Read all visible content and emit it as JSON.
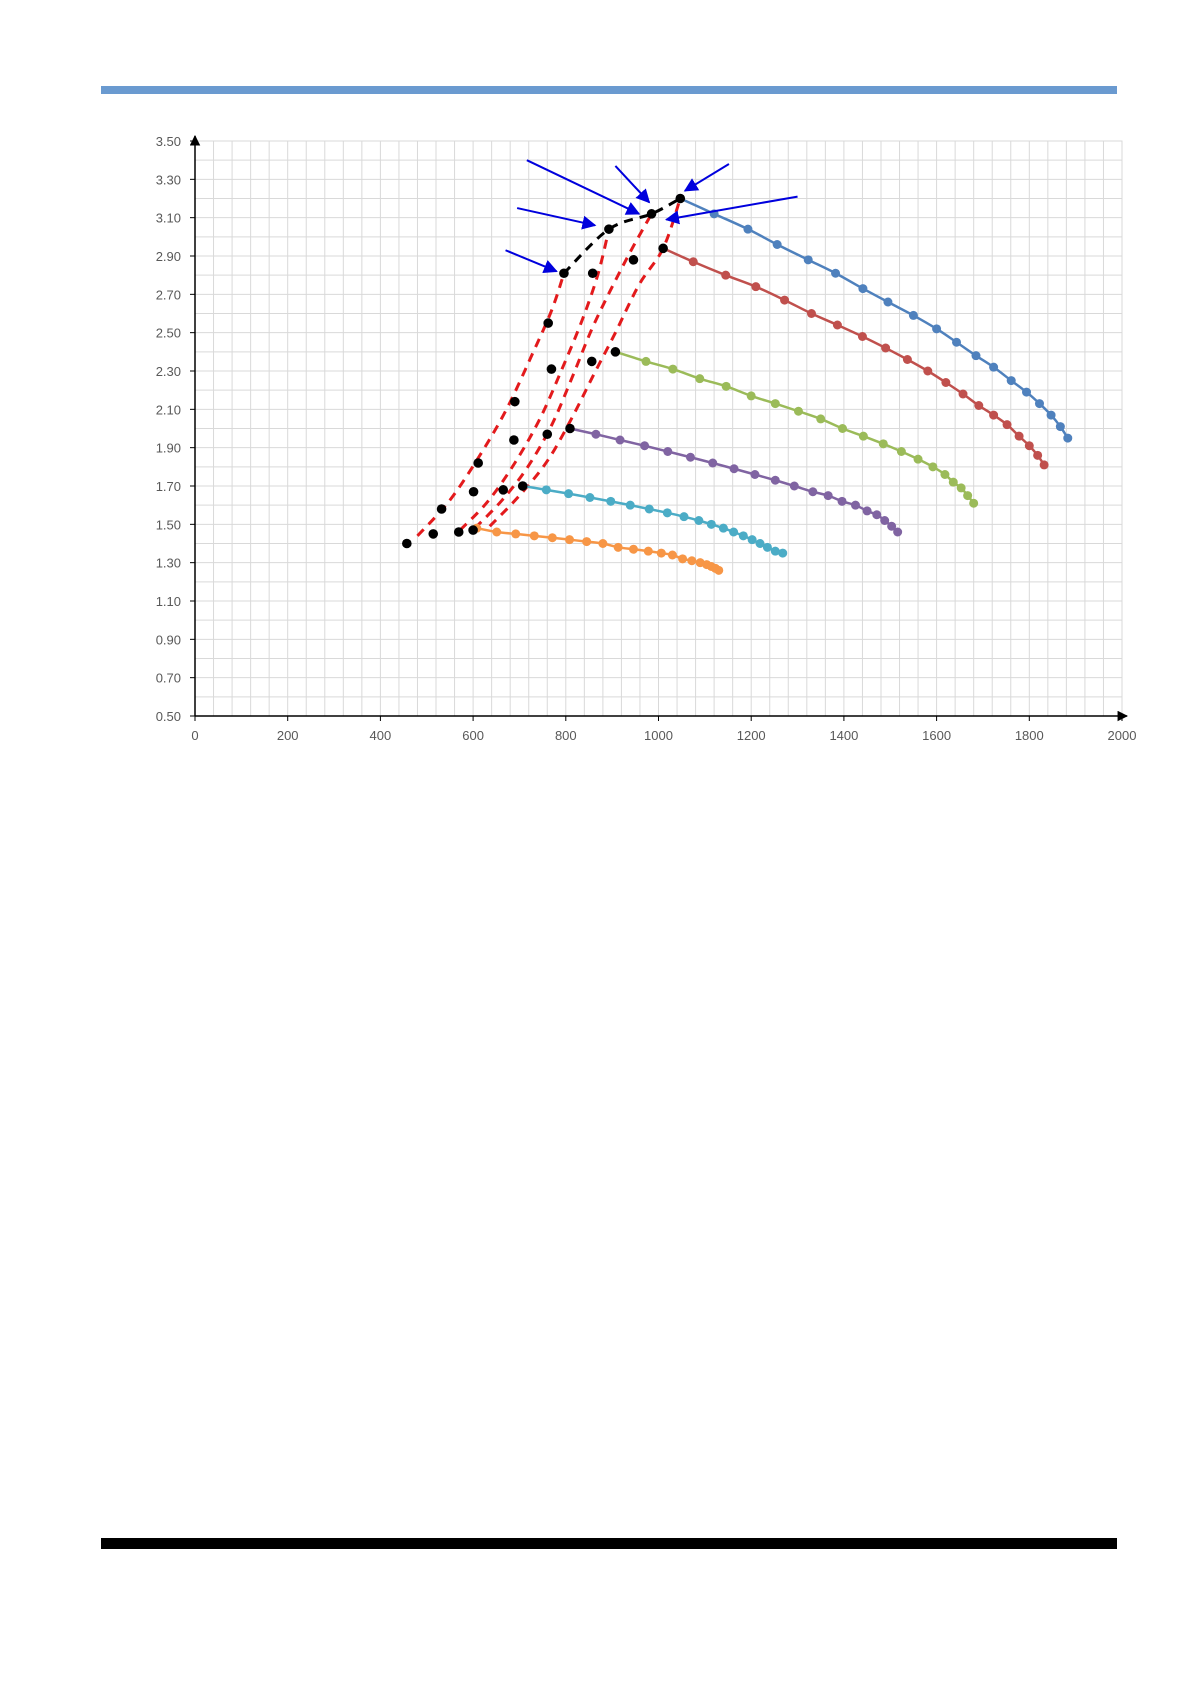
{
  "page": {
    "top_rule_color": "#6a9ad0",
    "bottom_rule_color": "#000000"
  },
  "chart_data": {
    "type": "scatter",
    "title": "",
    "xlabel": "",
    "ylabel": "",
    "xlim": [
      0,
      2000
    ],
    "ylim": [
      0.5,
      3.5
    ],
    "x_ticks": [
      "0",
      "200",
      "400",
      "600",
      "800",
      "1000",
      "1200",
      "1400",
      "1600",
      "1800",
      "2000"
    ],
    "y_ticks": [
      "0.50",
      "0.70",
      "0.90",
      "1.10",
      "1.30",
      "1.50",
      "1.70",
      "1.90",
      "2.10",
      "2.30",
      "2.50",
      "2.70",
      "2.90",
      "3.10",
      "3.30",
      "3.50"
    ],
    "grid": true,
    "legend": "none",
    "series": [
      {
        "color": "#4f81bd",
        "style": "line-markers",
        "points": [
          [
            1047,
            3.2
          ],
          [
            1120,
            3.12
          ],
          [
            1193,
            3.04
          ],
          [
            1256,
            2.96
          ],
          [
            1323,
            2.88
          ],
          [
            1382,
            2.81
          ],
          [
            1441,
            2.73
          ],
          [
            1495,
            2.66
          ],
          [
            1550,
            2.59
          ],
          [
            1600,
            2.52
          ],
          [
            1643,
            2.45
          ],
          [
            1685,
            2.38
          ],
          [
            1723,
            2.32
          ],
          [
            1761,
            2.25
          ],
          [
            1794,
            2.19
          ],
          [
            1822,
            2.13
          ],
          [
            1847,
            2.07
          ],
          [
            1867,
            2.01
          ],
          [
            1883,
            1.95
          ]
        ]
      },
      {
        "color": "#c0504d",
        "style": "line-markers",
        "points": [
          [
            1010,
            2.94
          ],
          [
            1075,
            2.87
          ],
          [
            1145,
            2.8
          ],
          [
            1210,
            2.74
          ],
          [
            1272,
            2.67
          ],
          [
            1330,
            2.6
          ],
          [
            1386,
            2.54
          ],
          [
            1440,
            2.48
          ],
          [
            1490,
            2.42
          ],
          [
            1537,
            2.36
          ],
          [
            1581,
            2.3
          ],
          [
            1620,
            2.24
          ],
          [
            1657,
            2.18
          ],
          [
            1691,
            2.12
          ],
          [
            1723,
            2.07
          ],
          [
            1752,
            2.02
          ],
          [
            1778,
            1.96
          ],
          [
            1800,
            1.91
          ],
          [
            1818,
            1.86
          ],
          [
            1832,
            1.81
          ]
        ]
      },
      {
        "color": "#9bbb59",
        "style": "line-markers",
        "points": [
          [
            907,
            2.4
          ],
          [
            973,
            2.35
          ],
          [
            1031,
            2.31
          ],
          [
            1089,
            2.26
          ],
          [
            1146,
            2.22
          ],
          [
            1200,
            2.17
          ],
          [
            1252,
            2.13
          ],
          [
            1302,
            2.09
          ],
          [
            1350,
            2.05
          ],
          [
            1397,
            2.0
          ],
          [
            1442,
            1.96
          ],
          [
            1485,
            1.92
          ],
          [
            1524,
            1.88
          ],
          [
            1560,
            1.84
          ],
          [
            1592,
            1.8
          ],
          [
            1618,
            1.76
          ],
          [
            1636,
            1.72
          ],
          [
            1653,
            1.69
          ],
          [
            1667,
            1.65
          ],
          [
            1680,
            1.61
          ]
        ]
      },
      {
        "color": "#8064a2",
        "style": "line-markers",
        "points": [
          [
            809,
            2.0
          ],
          [
            865,
            1.97
          ],
          [
            917,
            1.94
          ],
          [
            970,
            1.91
          ],
          [
            1020,
            1.88
          ],
          [
            1069,
            1.85
          ],
          [
            1117,
            1.82
          ],
          [
            1163,
            1.79
          ],
          [
            1208,
            1.76
          ],
          [
            1252,
            1.73
          ],
          [
            1293,
            1.7
          ],
          [
            1333,
            1.67
          ],
          [
            1366,
            1.65
          ],
          [
            1396,
            1.62
          ],
          [
            1425,
            1.6
          ],
          [
            1450,
            1.57
          ],
          [
            1471,
            1.55
          ],
          [
            1488,
            1.52
          ],
          [
            1503,
            1.49
          ],
          [
            1516,
            1.46
          ]
        ]
      },
      {
        "color": "#4bacc6",
        "style": "line-markers",
        "points": [
          [
            708,
            1.7
          ],
          [
            758,
            1.68
          ],
          [
            806,
            1.66
          ],
          [
            852,
            1.64
          ],
          [
            897,
            1.62
          ],
          [
            939,
            1.6
          ],
          [
            980,
            1.58
          ],
          [
            1019,
            1.56
          ],
          [
            1055,
            1.54
          ],
          [
            1087,
            1.52
          ],
          [
            1114,
            1.5
          ],
          [
            1140,
            1.48
          ],
          [
            1162,
            1.46
          ],
          [
            1183,
            1.44
          ],
          [
            1202,
            1.42
          ],
          [
            1219,
            1.4
          ],
          [
            1235,
            1.38
          ],
          [
            1252,
            1.36
          ],
          [
            1268,
            1.35
          ]
        ]
      },
      {
        "color": "#f79646",
        "style": "line-markers",
        "points": [
          [
            608,
            1.48
          ],
          [
            651,
            1.46
          ],
          [
            692,
            1.45
          ],
          [
            732,
            1.44
          ],
          [
            771,
            1.43
          ],
          [
            808,
            1.42
          ],
          [
            845,
            1.41
          ],
          [
            880,
            1.4
          ],
          [
            913,
            1.38
          ],
          [
            946,
            1.37
          ],
          [
            978,
            1.36
          ],
          [
            1006,
            1.35
          ],
          [
            1030,
            1.34
          ],
          [
            1052,
            1.32
          ],
          [
            1072,
            1.31
          ],
          [
            1090,
            1.3
          ],
          [
            1104,
            1.29
          ],
          [
            1114,
            1.28
          ],
          [
            1123,
            1.27
          ],
          [
            1130,
            1.26
          ]
        ]
      },
      {
        "color": "#000000",
        "style": "markers",
        "points": [
          [
            457,
            1.4
          ],
          [
            514,
            1.45
          ],
          [
            532,
            1.58
          ],
          [
            569,
            1.46
          ],
          [
            600,
            1.47
          ],
          [
            601,
            1.67
          ],
          [
            611,
            1.82
          ],
          [
            665,
            1.68
          ],
          [
            688,
            1.94
          ],
          [
            690,
            2.14
          ],
          [
            707,
            1.7
          ],
          [
            760,
            1.97
          ],
          [
            762,
            2.55
          ],
          [
            769,
            2.31
          ],
          [
            796,
            2.81
          ],
          [
            809,
            2.0
          ],
          [
            856,
            2.35
          ],
          [
            858,
            2.81
          ],
          [
            893,
            3.04
          ],
          [
            907,
            2.4
          ],
          [
            946,
            2.88
          ],
          [
            985,
            3.12
          ],
          [
            1010,
            2.94
          ],
          [
            1047,
            3.2
          ]
        ]
      },
      {
        "color": "#e31a1c",
        "style": "dashed",
        "points": [
          [
            480,
            1.44
          ],
          [
            548,
            1.62
          ],
          [
            612,
            1.85
          ],
          [
            672,
            2.1
          ],
          [
            730,
            2.4
          ],
          [
            770,
            2.62
          ],
          [
            796,
            2.81
          ]
        ]
      },
      {
        "color": "#e31a1c",
        "style": "dashed",
        "points": [
          [
            572,
            1.47
          ],
          [
            632,
            1.62
          ],
          [
            690,
            1.82
          ],
          [
            744,
            2.05
          ],
          [
            790,
            2.3
          ],
          [
            836,
            2.57
          ],
          [
            870,
            2.81
          ],
          [
            893,
            3.04
          ]
        ]
      },
      {
        "color": "#e31a1c",
        "style": "dashed",
        "points": [
          [
            604,
            1.48
          ],
          [
            664,
            1.63
          ],
          [
            718,
            1.8
          ],
          [
            770,
            2.02
          ],
          [
            816,
            2.28
          ],
          [
            862,
            2.55
          ],
          [
            930,
            2.88
          ],
          [
            985,
            3.12
          ]
        ]
      },
      {
        "color": "#e31a1c",
        "style": "dashed",
        "points": [
          [
            636,
            1.49
          ],
          [
            700,
            1.65
          ],
          [
            760,
            1.83
          ],
          [
            812,
            2.05
          ],
          [
            860,
            2.28
          ],
          [
            905,
            2.49
          ],
          [
            958,
            2.75
          ],
          [
            1010,
            2.94
          ],
          [
            1047,
            3.2
          ]
        ]
      },
      {
        "color": "#000000",
        "style": "dashed",
        "points": [
          [
            796,
            2.81
          ],
          [
            893,
            3.04
          ],
          [
            985,
            3.12
          ],
          [
            1047,
            3.2
          ]
        ]
      }
    ],
    "annotations": [
      {
        "type": "arrow",
        "color": "#0000dd",
        "from": [
          670,
          2.93
        ],
        "to": [
          780,
          2.82
        ]
      },
      {
        "type": "arrow",
        "color": "#0000dd",
        "from": [
          695,
          3.15
        ],
        "to": [
          863,
          3.06
        ]
      },
      {
        "type": "arrow",
        "color": "#0000dd",
        "from": [
          716,
          3.4
        ],
        "to": [
          958,
          3.12
        ]
      },
      {
        "type": "arrow",
        "color": "#0000dd",
        "from": [
          907,
          3.37
        ],
        "to": [
          980,
          3.18
        ]
      },
      {
        "type": "arrow",
        "color": "#0000dd",
        "from": [
          1152,
          3.38
        ],
        "to": [
          1057,
          3.24
        ]
      },
      {
        "type": "arrow",
        "color": "#0000dd",
        "from": [
          1300,
          3.21
        ],
        "to": [
          1017,
          3.09
        ]
      }
    ]
  }
}
